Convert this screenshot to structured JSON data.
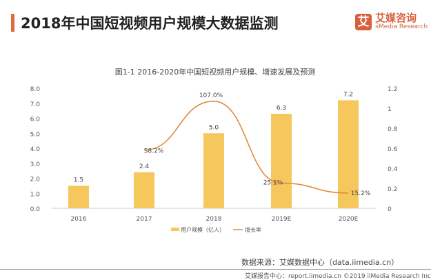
{
  "header": {
    "title": "2018年中国短视频用户规模大数据监测"
  },
  "logo": {
    "cn": "艾媒咨询",
    "en": "iiMedia Research",
    "mark": "艾"
  },
  "chart_data": {
    "type": "bar+line",
    "title": "图1-1 2016-2020年中国短视频用户规模、增速发展及预测",
    "categories": [
      "2016",
      "2017",
      "2018",
      "2019E",
      "2020E"
    ],
    "series": [
      {
        "name": "用户规模（亿人）",
        "type": "bar",
        "axis": "left",
        "values": [
          1.5,
          2.4,
          5.0,
          6.3,
          7.2
        ],
        "labels": [
          "1.5",
          "2.4",
          "5.0",
          "6.3",
          "7.2"
        ],
        "color": "#f5c75c"
      },
      {
        "name": "增长率",
        "type": "line",
        "axis": "right",
        "values": [
          null,
          0.582,
          1.07,
          0.251,
          0.152
        ],
        "labels": [
          "",
          "58.2%",
          "107.0%",
          "25.1%",
          "15.2%"
        ],
        "color": "#e08a3c"
      }
    ],
    "left_axis": {
      "range": [
        0,
        8
      ],
      "ticks": [
        "0.0",
        "1.0",
        "2.0",
        "3.0",
        "4.0",
        "5.0",
        "6.0",
        "7.0",
        "8.0"
      ]
    },
    "right_axis": {
      "range": [
        0,
        1.2
      ],
      "ticks": [
        "0",
        "0.2",
        "0.4",
        "0.6",
        "0.8",
        "1",
        "1.2"
      ]
    },
    "grid": false,
    "legend": "bottom"
  },
  "source": "数据来源：艾媒数据中心（data.iimedia.cn）",
  "footer": "艾媒报告中心：report.iimedia.cn ©2019 iiMedia Research Inc"
}
